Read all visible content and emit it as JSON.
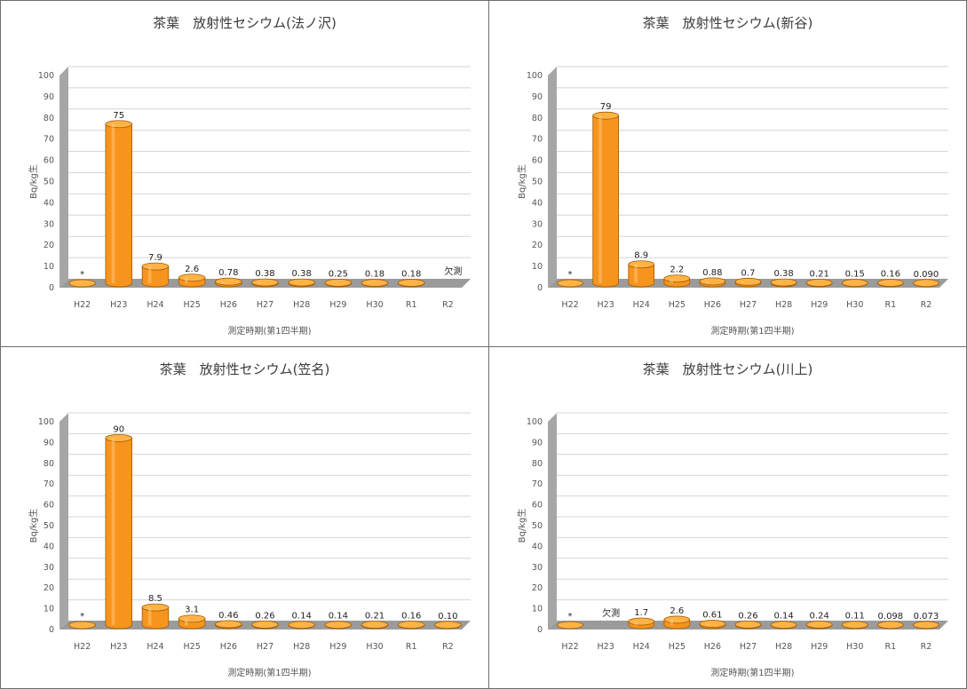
{
  "chart_data": [
    {
      "type": "bar",
      "title": "茶葉　放射性セシウム(法ノ沢)",
      "xlabel": "測定時期(第1四半期)",
      "ylabel": "Bq/kg生",
      "ylim": [
        0,
        100
      ],
      "yticks": [
        0,
        10,
        20,
        30,
        40,
        50,
        60,
        70,
        80,
        90,
        100
      ],
      "categories": [
        "H22",
        "H23",
        "H24",
        "H25",
        "H26",
        "H27",
        "H28",
        "H29",
        "H30",
        "R1",
        "R2"
      ],
      "values": [
        0,
        75,
        7.9,
        2.6,
        0.78,
        0.38,
        0.38,
        0.25,
        0.18,
        0.18,
        null
      ],
      "data_labels": [
        "*",
        "75",
        "7.9",
        "2.6",
        "0.78",
        "0.38",
        "0.38",
        "0.25",
        "0.18",
        "0.18",
        "欠測"
      ],
      "color": "#f7941d"
    },
    {
      "type": "bar",
      "title": "茶葉　放射性セシウム(新谷)",
      "xlabel": "測定時期(第1四半期)",
      "ylabel": "Bq/kg生",
      "ylim": [
        0,
        100
      ],
      "yticks": [
        0,
        10,
        20,
        30,
        40,
        50,
        60,
        70,
        80,
        90,
        100
      ],
      "categories": [
        "H22",
        "H23",
        "H24",
        "H25",
        "H26",
        "H27",
        "H28",
        "H29",
        "H30",
        "R1",
        "R2"
      ],
      "values": [
        0,
        79,
        8.9,
        2.2,
        0.88,
        0.7,
        0.38,
        0.21,
        0.15,
        0.16,
        0.09
      ],
      "data_labels": [
        "*",
        "79",
        "8.9",
        "2.2",
        "0.88",
        "0.7",
        "0.38",
        "0.21",
        "0.15",
        "0.16",
        "0.090"
      ],
      "color": "#f7941d"
    },
    {
      "type": "bar",
      "title": "茶葉　放射性セシウム(笠名)",
      "xlabel": "測定時期(第1四半期)",
      "ylabel": "Bq/kg生",
      "ylim": [
        0,
        100
      ],
      "yticks": [
        0,
        10,
        20,
        30,
        40,
        50,
        60,
        70,
        80,
        90,
        100
      ],
      "categories": [
        "H22",
        "H23",
        "H24",
        "H25",
        "H26",
        "H27",
        "H28",
        "H29",
        "H30",
        "R1",
        "R2"
      ],
      "values": [
        0,
        90,
        8.5,
        3.1,
        0.46,
        0.26,
        0.14,
        0.14,
        0.21,
        0.16,
        0.1
      ],
      "data_labels": [
        "*",
        "90",
        "8.5",
        "3.1",
        "0.46",
        "0.26",
        "0.14",
        "0.14",
        "0.21",
        "0.16",
        "0.10"
      ],
      "color": "#f7941d"
    },
    {
      "type": "bar",
      "title": "茶葉　放射性セシウム(川上)",
      "xlabel": "測定時期(第1四半期)",
      "ylabel": "Bq/kg生",
      "ylim": [
        0,
        100
      ],
      "yticks": [
        0,
        10,
        20,
        30,
        40,
        50,
        60,
        70,
        80,
        90,
        100
      ],
      "categories": [
        "H22",
        "H23",
        "H24",
        "H25",
        "H26",
        "H27",
        "H28",
        "H29",
        "H30",
        "R1",
        "R2"
      ],
      "values": [
        0,
        null,
        1.7,
        2.6,
        0.61,
        0.26,
        0.14,
        0.24,
        0.11,
        0.098,
        0.073
      ],
      "data_labels": [
        "*",
        "欠測",
        "1.7",
        "2.6",
        "0.61",
        "0.26",
        "0.14",
        "0.24",
        "0.11",
        "0.098",
        "0.073"
      ],
      "color": "#f7941d"
    }
  ]
}
